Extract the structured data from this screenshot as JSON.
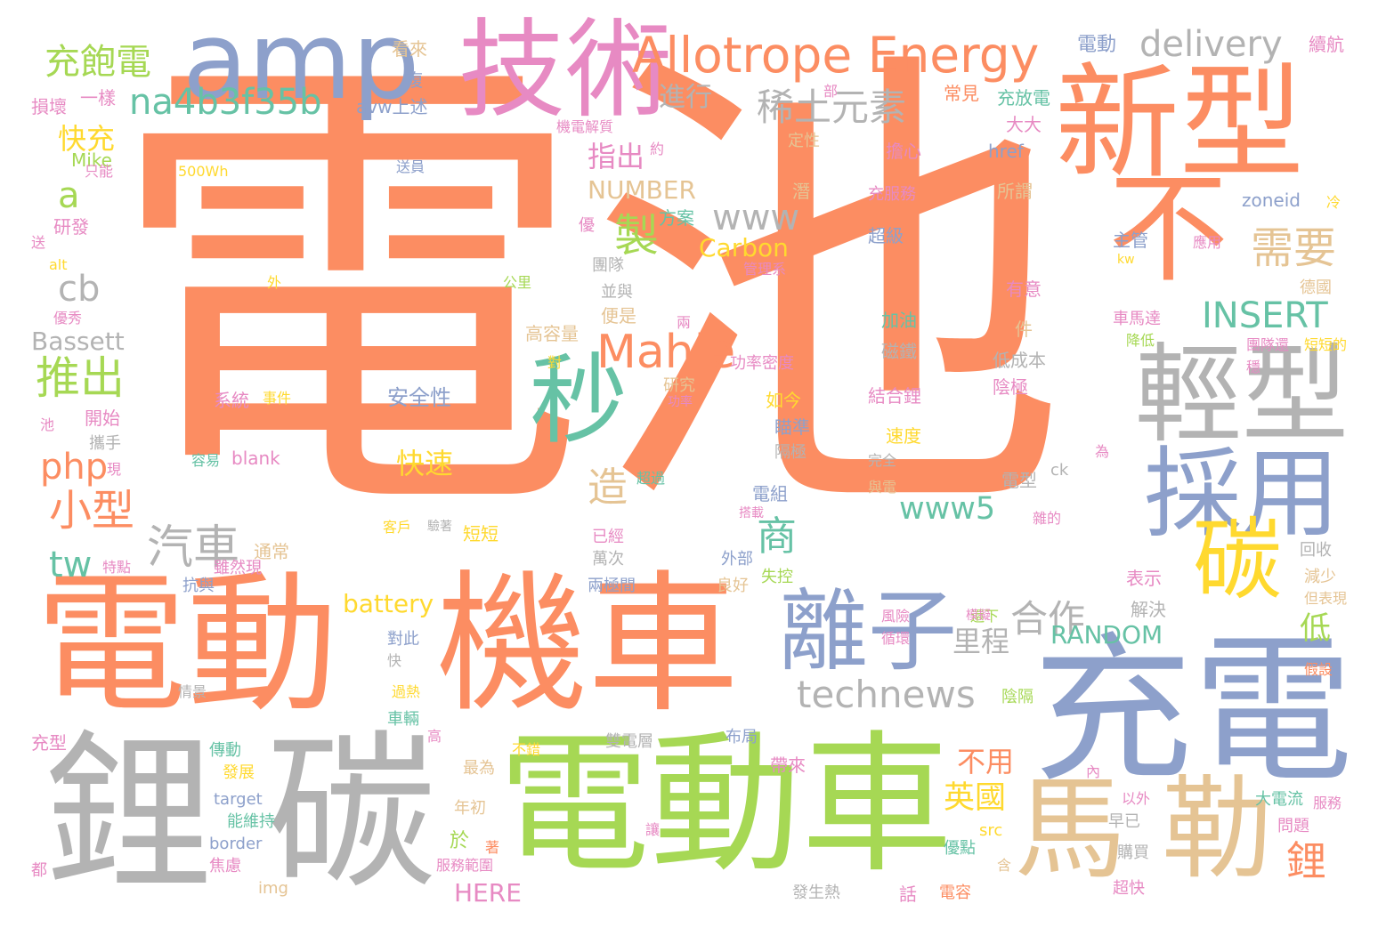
{
  "palette": {
    "orange": "#fc8d62",
    "blue": "#8da0cb",
    "green": "#a6d854",
    "pink": "#e78ac3",
    "yellow": "#ffd92f",
    "tan": "#e5c494",
    "gray": "#b3b3b3",
    "teal": "#66c2a5"
  },
  "words": [
    {
      "text": "電池",
      "color": "orange"
    },
    {
      "text": "電動",
      "color": "orange"
    },
    {
      "text": "機車",
      "color": "orange"
    },
    {
      "text": "電動車",
      "color": "green"
    },
    {
      "text": "充電",
      "color": "blue"
    },
    {
      "text": "鋰",
      "color": "gray"
    },
    {
      "text": "碳",
      "color": "gray"
    },
    {
      "text": "新型",
      "color": "orange"
    },
    {
      "text": "技術",
      "color": "pink"
    },
    {
      "text": "amp",
      "color": "blue"
    },
    {
      "text": "馬",
      "color": "tan"
    },
    {
      "text": "勒",
      "color": "tan"
    },
    {
      "text": "不",
      "color": "orange"
    },
    {
      "text": "輕型",
      "color": "gray"
    },
    {
      "text": "採用",
      "color": "blue"
    },
    {
      "text": "離子",
      "color": "blue"
    },
    {
      "text": "碳",
      "color": "yellow"
    },
    {
      "text": "秒",
      "color": "teal"
    },
    {
      "text": "Allotrope Energy",
      "color": "orange"
    },
    {
      "text": "na4b3f35b",
      "color": "teal"
    },
    {
      "text": "稀土元素",
      "color": "gray"
    },
    {
      "text": "delivery",
      "color": "gray"
    },
    {
      "text": "充飽電",
      "color": "green"
    },
    {
      "text": "technews",
      "color": "gray"
    },
    {
      "text": "Mahle",
      "color": "orange"
    },
    {
      "text": "www",
      "color": "gray"
    },
    {
      "text": "推出",
      "color": "green"
    },
    {
      "text": "需要",
      "color": "tan"
    },
    {
      "text": "INSERT",
      "color": "teal"
    },
    {
      "text": "www5",
      "color": "teal"
    },
    {
      "text": "合作",
      "color": "gray"
    },
    {
      "text": "汽車",
      "color": "gray"
    },
    {
      "text": "小型",
      "color": "orange"
    },
    {
      "text": "php",
      "color": "orange"
    },
    {
      "text": "tw",
      "color": "teal"
    },
    {
      "text": "cb",
      "color": "gray"
    },
    {
      "text": "a",
      "color": "green"
    },
    {
      "text": "製",
      "color": "green"
    },
    {
      "text": "造",
      "color": "tan"
    },
    {
      "text": "商",
      "color": "teal"
    },
    {
      "text": "RANDOM",
      "color": "teal"
    },
    {
      "text": "battery",
      "color": "yellow"
    },
    {
      "text": "Carbon",
      "color": "yellow"
    },
    {
      "text": "NUMBER",
      "color": "tan"
    },
    {
      "text": "里程",
      "color": "gray"
    },
    {
      "text": "快充",
      "color": "yellow"
    },
    {
      "text": "Bassett",
      "color": "gray"
    },
    {
      "text": "指出",
      "color": "pink"
    },
    {
      "text": "進行",
      "color": "gray"
    },
    {
      "text": "鋰",
      "color": "orange"
    },
    {
      "text": "英國",
      "color": "yellow"
    },
    {
      "text": "不用",
      "color": "orange"
    },
    {
      "text": "HERE",
      "color": "pink"
    },
    {
      "text": "快速",
      "color": "yellow"
    },
    {
      "text": "低",
      "color": "green"
    },
    {
      "text": "安全性",
      "color": "blue"
    },
    {
      "text": "電動",
      "color": "blue"
    },
    {
      "text": "續航",
      "color": "pink"
    },
    {
      "text": "損壞",
      "color": "pink"
    },
    {
      "text": "一樣",
      "color": "pink"
    },
    {
      "text": "avw上述",
      "color": "blue"
    },
    {
      "text": "看來",
      "color": "tan"
    },
    {
      "text": "複",
      "color": "blue"
    },
    {
      "text": "常見",
      "color": "orange"
    },
    {
      "text": "充放電",
      "color": "teal"
    },
    {
      "text": "大大",
      "color": "pink"
    },
    {
      "text": "Mike",
      "color": "green"
    },
    {
      "text": "只能",
      "color": "pink"
    },
    {
      "text": "500Wh",
      "color": "yellow"
    },
    {
      "text": "送員",
      "color": "blue"
    },
    {
      "text": "href",
      "color": "blue"
    },
    {
      "text": "擔心",
      "color": "pink"
    },
    {
      "text": "研發",
      "color": "pink"
    },
    {
      "text": "送",
      "color": "pink"
    },
    {
      "text": "alt",
      "color": "yellow"
    },
    {
      "text": "方案",
      "color": "teal"
    },
    {
      "text": "所謂",
      "color": "tan"
    },
    {
      "text": "zoneid",
      "color": "blue"
    },
    {
      "text": "超級",
      "color": "blue"
    },
    {
      "text": "主管",
      "color": "blue"
    },
    {
      "text": "應用",
      "color": "pink"
    },
    {
      "text": "充服務",
      "color": "pink"
    },
    {
      "text": "團隊",
      "color": "gray"
    },
    {
      "text": "管理系",
      "color": "pink"
    },
    {
      "text": "公里",
      "color": "green"
    },
    {
      "text": "並與",
      "color": "gray"
    },
    {
      "text": "便是",
      "color": "tan"
    },
    {
      "text": "有意",
      "color": "pink"
    },
    {
      "text": "件",
      "color": "tan"
    },
    {
      "text": "德國",
      "color": "tan"
    },
    {
      "text": "優秀",
      "color": "pink"
    },
    {
      "text": "高容量",
      "color": "tan"
    },
    {
      "text": "加油",
      "color": "teal"
    },
    {
      "text": "磁鐵",
      "color": "gray"
    },
    {
      "text": "車馬達",
      "color": "pink"
    },
    {
      "text": "降低",
      "color": "green"
    },
    {
      "text": "團隊還",
      "color": "pink"
    },
    {
      "text": "短短的",
      "color": "yellow"
    },
    {
      "text": "功率密度",
      "color": "pink"
    },
    {
      "text": "低成本",
      "color": "gray"
    },
    {
      "text": "系統",
      "color": "pink"
    },
    {
      "text": "事件",
      "color": "yellow"
    },
    {
      "text": "研究",
      "color": "tan"
    },
    {
      "text": "如今",
      "color": "yellow"
    },
    {
      "text": "結合鋰",
      "color": "pink"
    },
    {
      "text": "陰極",
      "color": "pink"
    },
    {
      "text": "開始",
      "color": "pink"
    },
    {
      "text": "池",
      "color": "pink"
    },
    {
      "text": "攜手",
      "color": "gray"
    },
    {
      "text": "瞄準",
      "color": "blue"
    },
    {
      "text": "速度",
      "color": "yellow"
    },
    {
      "text": "容易",
      "color": "teal"
    },
    {
      "text": "blank",
      "color": "pink"
    },
    {
      "text": "隔極",
      "color": "gray"
    },
    {
      "text": "完全",
      "color": "gray"
    },
    {
      "text": "ck",
      "color": "gray"
    },
    {
      "text": "為",
      "color": "pink"
    },
    {
      "text": "超過",
      "color": "teal"
    },
    {
      "text": "電型",
      "color": "gray"
    },
    {
      "text": "與電",
      "color": "tan"
    },
    {
      "text": "電組",
      "color": "blue"
    },
    {
      "text": "雜的",
      "color": "pink"
    },
    {
      "text": "通常",
      "color": "tan"
    },
    {
      "text": "客戶",
      "color": "yellow"
    },
    {
      "text": "短短",
      "color": "yellow"
    },
    {
      "text": "已經",
      "color": "pink"
    },
    {
      "text": "回收",
      "color": "gray"
    },
    {
      "text": "特點",
      "color": "pink"
    },
    {
      "text": "雖然現",
      "color": "pink"
    },
    {
      "text": "萬次",
      "color": "gray"
    },
    {
      "text": "外部",
      "color": "blue"
    },
    {
      "text": "失控",
      "color": "green"
    },
    {
      "text": "減少",
      "color": "tan"
    },
    {
      "text": "抗與",
      "color": "blue"
    },
    {
      "text": "兩極間",
      "color": "blue"
    },
    {
      "text": "良好",
      "color": "tan"
    },
    {
      "text": "表示",
      "color": "pink"
    },
    {
      "text": "但表現",
      "color": "tan"
    },
    {
      "text": "解決",
      "color": "gray"
    },
    {
      "text": "風險",
      "color": "pink"
    },
    {
      "text": "還下",
      "color": "green"
    },
    {
      "text": "循環",
      "color": "pink"
    },
    {
      "text": "對此",
      "color": "blue"
    },
    {
      "text": "快",
      "color": "gray"
    },
    {
      "text": "情景",
      "color": "gray"
    },
    {
      "text": "過熱",
      "color": "yellow"
    },
    {
      "text": "陰隔",
      "color": "green"
    },
    {
      "text": "假設",
      "color": "orange"
    },
    {
      "text": "車輛",
      "color": "teal"
    },
    {
      "text": "高",
      "color": "pink"
    },
    {
      "text": "雙電層",
      "color": "gray"
    },
    {
      "text": "布局",
      "color": "blue"
    },
    {
      "text": "充型",
      "color": "pink"
    },
    {
      "text": "傳動",
      "color": "teal"
    },
    {
      "text": "不錯",
      "color": "yellow"
    },
    {
      "text": "最為",
      "color": "tan"
    },
    {
      "text": "帶來",
      "color": "pink"
    },
    {
      "text": "內",
      "color": "pink"
    },
    {
      "text": "以外",
      "color": "pink"
    },
    {
      "text": "大電流",
      "color": "teal"
    },
    {
      "text": "服務",
      "color": "pink"
    },
    {
      "text": "發展",
      "color": "yellow"
    },
    {
      "text": "target",
      "color": "blue"
    },
    {
      "text": "年初",
      "color": "tan"
    },
    {
      "text": "問題",
      "color": "pink"
    },
    {
      "text": "能維持",
      "color": "teal"
    },
    {
      "text": "src",
      "color": "yellow"
    },
    {
      "text": "早已",
      "color": "gray"
    },
    {
      "text": "border",
      "color": "blue"
    },
    {
      "text": "於",
      "color": "green"
    },
    {
      "text": "著",
      "color": "orange"
    },
    {
      "text": "優點",
      "color": "teal"
    },
    {
      "text": "購買",
      "color": "gray"
    },
    {
      "text": "焦慮",
      "color": "pink"
    },
    {
      "text": "服務範圍",
      "color": "pink"
    },
    {
      "text": "含",
      "color": "tan"
    },
    {
      "text": "都",
      "color": "pink"
    },
    {
      "text": "img",
      "color": "tan"
    },
    {
      "text": "發生熱",
      "color": "gray"
    },
    {
      "text": "話",
      "color": "pink"
    },
    {
      "text": "電容",
      "color": "orange"
    },
    {
      "text": "超快",
      "color": "pink"
    },
    {
      "text": "部",
      "color": "pink"
    },
    {
      "text": "機電解質",
      "color": "pink"
    },
    {
      "text": "約",
      "color": "pink"
    },
    {
      "text": "定性",
      "color": "tan"
    },
    {
      "text": "潛",
      "color": "tan"
    },
    {
      "text": "優",
      "color": "pink"
    },
    {
      "text": "冷",
      "color": "yellow"
    },
    {
      "text": "kw",
      "color": "yellow"
    },
    {
      "text": "外",
      "color": "yellow"
    },
    {
      "text": "對",
      "color": "yellow"
    },
    {
      "text": "穩",
      "color": "pink"
    },
    {
      "text": "兩",
      "color": "pink"
    },
    {
      "text": "功率",
      "color": "pink"
    },
    {
      "text": "現",
      "color": "pink"
    },
    {
      "text": "搭載",
      "color": "pink"
    },
    {
      "text": "驗著",
      "color": "gray"
    },
    {
      "text": "模擬",
      "color": "pink"
    },
    {
      "text": "讓",
      "color": "pink"
    }
  ]
}
